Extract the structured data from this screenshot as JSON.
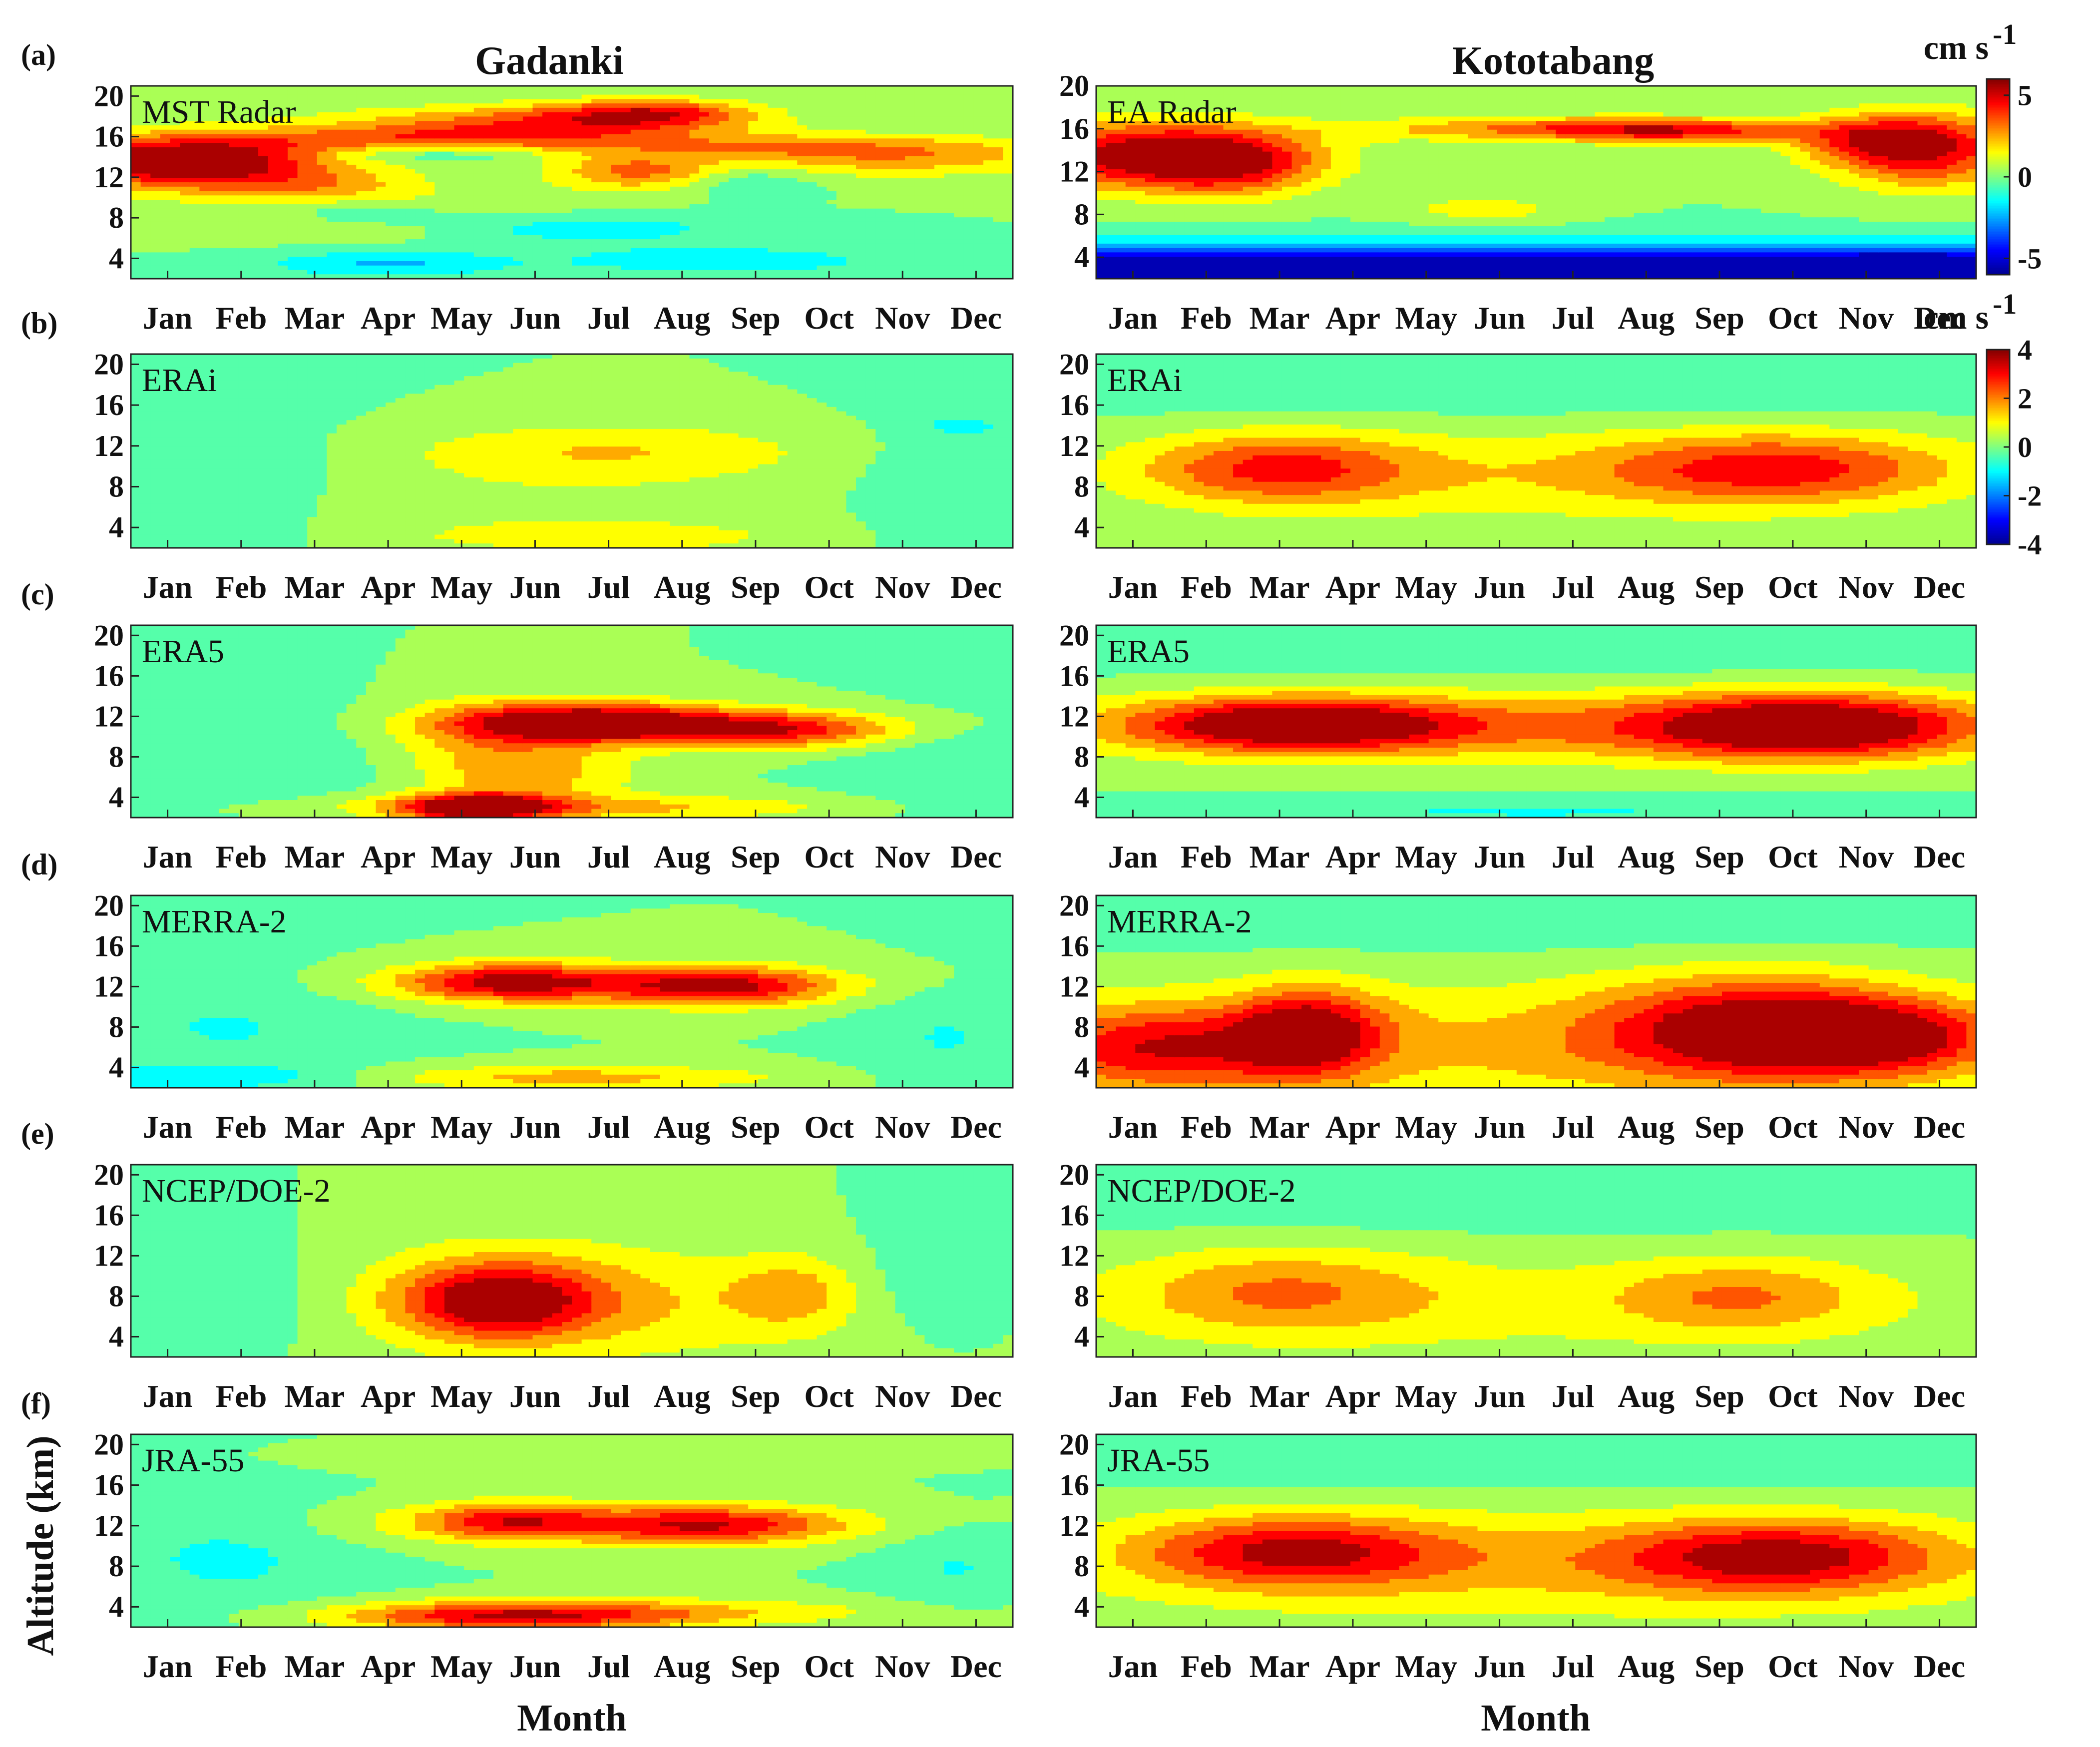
{
  "chart_data": {
    "type": "heatmap",
    "units": "cm s-1",
    "columns": [
      {
        "station": "Gadanki"
      },
      {
        "station": "Kototabang"
      }
    ],
    "months": [
      "Jan",
      "Feb",
      "Mar",
      "Apr",
      "May",
      "Jun",
      "Jul",
      "Aug",
      "Sep",
      "Oct",
      "Nov",
      "Dec"
    ],
    "xlabel": "Month",
    "ylabel": "Altitude (km)",
    "yticks": [
      4,
      8,
      12,
      16,
      20
    ],
    "ylim": [
      2,
      21
    ],
    "colorbars": [
      {
        "unit": "cm s",
        "unit_exp": "-1",
        "range": [
          -6,
          6
        ],
        "ticks": [
          "5",
          "0",
          "-5"
        ],
        "applies_to": "a"
      },
      {
        "unit": "cm s",
        "unit_exp": "-1",
        "range": [
          -4,
          4
        ],
        "ticks": [
          "4",
          "2",
          "0",
          "-2",
          "-4"
        ],
        "applies_to": "b-f"
      }
    ],
    "rows": [
      {
        "label": "(a)",
        "panels": [
          {
            "station": "Gadanki",
            "name": "MST Radar",
            "range": [
              -6,
              6
            ],
            "ylim": [
              2,
              21
            ],
            "features": [
              {
                "month": 1.6,
                "alt": 13.5,
                "amp": 4.5,
                "sm": 1.5,
                "sa": 2.0
              },
              {
                "month": 1.0,
                "alt": 13.5,
                "amp": 3.0,
                "sm": 1.0,
                "sa": 1.5
              },
              {
                "month": 5.8,
                "alt": 17.2,
                "amp": 3.5,
                "sm": 1.8,
                "sa": 1.3
              },
              {
                "month": 7.6,
                "alt": 18.3,
                "amp": 4.0,
                "sm": 1.0,
                "sa": 1.0
              },
              {
                "month": 7.4,
                "alt": 12.5,
                "amp": 3.2,
                "sm": 0.8,
                "sa": 1.2
              },
              {
                "month": 9.5,
                "alt": 15.0,
                "amp": 2.5,
                "sm": 2.5,
                "sa": 1.0
              },
              {
                "month": 4.5,
                "alt": 15.8,
                "amp": 2.0,
                "sm": 2.0,
                "sa": 0.8
              },
              {
                "month": 11.0,
                "alt": 13.5,
                "amp": 2.0,
                "sm": 1.5,
                "sa": 1.2
              },
              {
                "month": 3.0,
                "alt": 11.0,
                "amp": 1.5,
                "sm": 1.0,
                "sa": 1.0
              },
              {
                "month": 4.8,
                "alt": 8.0,
                "amp": 1.2,
                "sm": 2.0,
                "sa": 2.0
              },
              {
                "month": 4.0,
                "alt": 3.5,
                "amp": -2.2,
                "sm": 1.2,
                "sa": 1.0
              },
              {
                "month": 8.5,
                "alt": 3.8,
                "amp": -2.0,
                "sm": 1.5,
                "sa": 0.9
              },
              {
                "month": 6.5,
                "alt": 7.0,
                "amp": -2.2,
                "sm": 1.5,
                "sa": 1.2
              },
              {
                "month": 3.8,
                "alt": 8.5,
                "amp": -1.5,
                "sm": 0.8,
                "sa": 0.8
              },
              {
                "month": 4.5,
                "alt": 14.2,
                "amp": -1.5,
                "sm": 1.0,
                "sa": 0.6
              },
              {
                "month": 8.8,
                "alt": 11.5,
                "amp": -1.2,
                "sm": 0.6,
                "sa": 1.0
              }
            ]
          },
          {
            "station": "Kototabang",
            "name": "EA Radar",
            "range": [
              -6,
              6
            ],
            "ylim": [
              2,
              20
            ],
            "features": [
              {
                "month": 1.3,
                "alt": 13.5,
                "amp": 6.0,
                "sm": 1.4,
                "sa": 2.2
              },
              {
                "month": 2.4,
                "alt": 12.5,
                "amp": 2.5,
                "sm": 0.8,
                "sa": 2.0
              },
              {
                "month": 11.8,
                "alt": 14.0,
                "amp": 4.8,
                "sm": 0.9,
                "sa": 2.5
              },
              {
                "month": 11.0,
                "alt": 15.0,
                "amp": 2.5,
                "sm": 0.8,
                "sa": 1.5
              },
              {
                "month": 6.5,
                "alt": 16.0,
                "amp": 3.0,
                "sm": 1.8,
                "sa": 0.8
              },
              {
                "month": 8.5,
                "alt": 15.8,
                "amp": 3.5,
                "sm": 1.2,
                "sa": 0.8
              },
              {
                "month": 5.8,
                "alt": 8.5,
                "amp": 1.5,
                "sm": 0.8,
                "sa": 1.0
              },
              {
                "month": 6.5,
                "alt": 2.8,
                "amp": -6.0,
                "sm": 30.0,
                "sa": 0.9
              },
              {
                "month": 6.5,
                "alt": 4.5,
                "amp": -2.5,
                "sm": 30.0,
                "sa": 1.2
              },
              {
                "month": 11.5,
                "alt": 3.0,
                "amp": -2.5,
                "sm": 1.0,
                "sa": 1.0
              },
              {
                "month": 4.0,
                "alt": 3.2,
                "amp": -1.5,
                "sm": 1.2,
                "sa": 0.8
              }
            ]
          }
        ]
      },
      {
        "label": "(b)",
        "panels": [
          {
            "station": "Gadanki",
            "name": "ERAi",
            "range": [
              -4,
              4
            ],
            "ylim": [
              2,
              21
            ],
            "features": [
              {
                "month": 7.0,
                "alt": 11.5,
                "amp": 1.3,
                "sm": 2.0,
                "sa": 2.0
              },
              {
                "month": 7.0,
                "alt": 3.0,
                "amp": 0.9,
                "sm": 1.8,
                "sa": 1.0
              },
              {
                "month": 1.8,
                "alt": 8.0,
                "amp": -0.6,
                "sm": 1.2,
                "sa": 5.0
              },
              {
                "month": 11.8,
                "alt": 8.0,
                "amp": -0.6,
                "sm": 1.0,
                "sa": 5.0
              },
              {
                "month": 5.8,
                "alt": 6.0,
                "amp": 0.5,
                "sm": 3.0,
                "sa": 3.0
              },
              {
                "month": 11.8,
                "alt": 14.0,
                "amp": -0.7,
                "sm": 0.4,
                "sa": 0.6
              }
            ]
          },
          {
            "station": "Kototabang",
            "name": "ERAi",
            "range": [
              -4,
              4
            ],
            "ylim": [
              2,
              21
            ],
            "features": [
              {
                "month": 3.0,
                "alt": 9.8,
                "amp": 2.4,
                "sm": 1.3,
                "sa": 2.4
              },
              {
                "month": 9.8,
                "alt": 9.8,
                "amp": 2.5,
                "sm": 1.7,
                "sa": 2.4
              },
              {
                "month": 6.5,
                "alt": 9.0,
                "amp": 1.0,
                "sm": 4.0,
                "sa": 3.5
              },
              {
                "month": 6.5,
                "alt": 17.0,
                "amp": -0.4,
                "sm": 6.0,
                "sa": 2.0
              },
              {
                "month": 6.5,
                "alt": 2.5,
                "amp": 0.4,
                "sm": 6.0,
                "sa": 1.0
              }
            ]
          }
        ]
      },
      {
        "label": "(c)",
        "panels": [
          {
            "station": "Gadanki",
            "name": "ERA5",
            "range": [
              -4,
              4
            ],
            "ylim": [
              2,
              21
            ],
            "features": [
              {
                "month": 6.7,
                "alt": 11.5,
                "amp": 3.2,
                "sm": 1.2,
                "sa": 1.4
              },
              {
                "month": 8.0,
                "alt": 11.0,
                "amp": 2.2,
                "sm": 2.0,
                "sa": 1.3
              },
              {
                "month": 9.5,
                "alt": 10.5,
                "amp": 1.6,
                "sm": 1.0,
                "sa": 1.2
              },
              {
                "month": 5.2,
                "alt": 3.0,
                "amp": 3.8,
                "sm": 0.7,
                "sa": 1.0
              },
              {
                "month": 6.0,
                "alt": 6.5,
                "amp": 1.5,
                "sm": 1.0,
                "sa": 2.0
              },
              {
                "month": 6.5,
                "alt": 3.0,
                "amp": 1.6,
                "sm": 2.5,
                "sa": 0.9
              },
              {
                "month": 5.2,
                "alt": 10.0,
                "amp": 1.0,
                "sm": 0.8,
                "sa": 3.0
              },
              {
                "month": 1.8,
                "alt": 8.0,
                "amp": -0.6,
                "sm": 1.5,
                "sa": 4.0
              },
              {
                "month": 11.7,
                "alt": 7.0,
                "amp": -0.6,
                "sm": 1.0,
                "sa": 4.0
              }
            ]
          },
          {
            "station": "Kototabang",
            "name": "ERA5",
            "range": [
              -4,
              4
            ],
            "ylim": [
              2,
              21
            ],
            "features": [
              {
                "month": 3.2,
                "alt": 11.2,
                "amp": 3.5,
                "sm": 1.5,
                "sa": 1.8
              },
              {
                "month": 10.2,
                "alt": 11.0,
                "amp": 3.8,
                "sm": 1.5,
                "sa": 2.2
              },
              {
                "month": 6.5,
                "alt": 11.0,
                "amp": 1.9,
                "sm": 5.0,
                "sa": 2.5
              },
              {
                "month": 6.5,
                "alt": 2.5,
                "amp": -0.7,
                "sm": 6.0,
                "sa": 1.0
              },
              {
                "month": 6.5,
                "alt": 18.0,
                "amp": -0.4,
                "sm": 6.0,
                "sa": 2.0
              }
            ]
          }
        ]
      },
      {
        "label": "(d)",
        "panels": [
          {
            "station": "Gadanki",
            "name": "MERRA-2",
            "range": [
              -4,
              4
            ],
            "ylim": [
              2,
              21
            ],
            "features": [
              {
                "month": 5.6,
                "alt": 12.5,
                "amp": 2.6,
                "sm": 1.0,
                "sa": 1.3
              },
              {
                "month": 8.6,
                "alt": 12.0,
                "amp": 2.6,
                "sm": 1.0,
                "sa": 1.3
              },
              {
                "month": 7.0,
                "alt": 12.2,
                "amp": 1.6,
                "sm": 2.2,
                "sa": 1.5
              },
              {
                "month": 6.5,
                "alt": 3.0,
                "amp": 1.6,
                "sm": 2.0,
                "sa": 0.9
              },
              {
                "month": 1.8,
                "alt": 8.0,
                "amp": -0.7,
                "sm": 1.5,
                "sa": 4.0
              },
              {
                "month": 1.5,
                "alt": 3.0,
                "amp": -1.0,
                "sm": 1.5,
                "sa": 0.8
              },
              {
                "month": 11.6,
                "alt": 7.0,
                "amp": -0.7,
                "sm": 0.8,
                "sa": 3.5
              }
            ]
          },
          {
            "station": "Kototabang",
            "name": "MERRA-2",
            "range": [
              -4,
              4
            ],
            "ylim": [
              2,
              21
            ],
            "features": [
              {
                "month": 3.4,
                "alt": 7.5,
                "amp": 3.2,
                "sm": 0.7,
                "sa": 3.0
              },
              {
                "month": 9.5,
                "alt": 8.0,
                "amp": 3.2,
                "sm": 1.5,
                "sa": 3.5
              },
              {
                "month": 11.2,
                "alt": 7.0,
                "amp": 2.6,
                "sm": 1.2,
                "sa": 2.5
              },
              {
                "month": 1.3,
                "alt": 6.0,
                "amp": 2.6,
                "sm": 1.3,
                "sa": 3.0
              },
              {
                "month": 6.5,
                "alt": 6.0,
                "amp": 1.4,
                "sm": 5.0,
                "sa": 4.5
              },
              {
                "month": 6.5,
                "alt": 18.0,
                "amp": -0.4,
                "sm": 6.0,
                "sa": 2.0
              }
            ]
          }
        ]
      },
      {
        "label": "(e)",
        "panels": [
          {
            "station": "Gadanki",
            "name": "NCEP/DOE-2",
            "range": [
              -4,
              4
            ],
            "ylim": [
              2,
              21
            ],
            "features": [
              {
                "month": 5.5,
                "alt": 7.5,
                "amp": 3.0,
                "sm": 0.9,
                "sa": 2.5
              },
              {
                "month": 5.8,
                "alt": 8.5,
                "amp": 1.2,
                "sm": 2.0,
                "sa": 4.0
              },
              {
                "month": 9.5,
                "alt": 8.5,
                "amp": 1.3,
                "sm": 0.6,
                "sa": 2.5
              },
              {
                "month": 7.5,
                "alt": 6.0,
                "amp": 0.6,
                "sm": 3.0,
                "sa": 4.0
              },
              {
                "month": 1.8,
                "alt": 8.0,
                "amp": -0.7,
                "sm": 1.5,
                "sa": 4.0
              },
              {
                "month": 11.5,
                "alt": 9.0,
                "amp": -0.6,
                "sm": 0.8,
                "sa": 4.0
              }
            ]
          },
          {
            "station": "Kototabang",
            "name": "NCEP/DOE-2",
            "range": [
              -4,
              4
            ],
            "ylim": [
              2,
              21
            ],
            "features": [
              {
                "month": 3.0,
                "alt": 8.5,
                "amp": 1.6,
                "sm": 1.5,
                "sa": 3.0
              },
              {
                "month": 9.3,
                "alt": 8.0,
                "amp": 1.5,
                "sm": 1.2,
                "sa": 2.5
              },
              {
                "month": 6.5,
                "alt": 7.0,
                "amp": 0.8,
                "sm": 5.0,
                "sa": 4.0
              },
              {
                "month": 6.5,
                "alt": 17.5,
                "amp": -0.6,
                "sm": 6.0,
                "sa": 2.2
              }
            ]
          }
        ]
      },
      {
        "label": "(f)",
        "panels": [
          {
            "station": "Gadanki",
            "name": "JRA-55",
            "range": [
              -4,
              4
            ],
            "ylim": [
              2,
              21
            ],
            "features": [
              {
                "month": 5.6,
                "alt": 12.5,
                "amp": 2.0,
                "sm": 0.8,
                "sa": 1.3
              },
              {
                "month": 8.4,
                "alt": 12.0,
                "amp": 2.2,
                "sm": 1.2,
                "sa": 1.3
              },
              {
                "month": 7.0,
                "alt": 12.2,
                "amp": 1.5,
                "sm": 2.5,
                "sa": 1.5
              },
              {
                "month": 5.6,
                "alt": 3.0,
                "amp": 2.7,
                "sm": 1.6,
                "sa": 1.0
              },
              {
                "month": 7.5,
                "alt": 3.5,
                "amp": 1.3,
                "sm": 2.5,
                "sa": 1.0
              },
              {
                "month": 1.8,
                "alt": 9.0,
                "amp": -0.8,
                "sm": 1.2,
                "sa": 4.0
              },
              {
                "month": 11.7,
                "alt": 8.0,
                "amp": -0.7,
                "sm": 0.7,
                "sa": 3.0
              },
              {
                "month": 6.5,
                "alt": 18.5,
                "amp": 0.4,
                "sm": 2.0,
                "sa": 1.0
              }
            ]
          },
          {
            "station": "Kototabang",
            "name": "JRA-55",
            "range": [
              -4,
              4
            ],
            "ylim": [
              2,
              21
            ],
            "features": [
              {
                "month": 3.2,
                "alt": 9.5,
                "amp": 2.8,
                "sm": 1.5,
                "sa": 2.4
              },
              {
                "month": 9.8,
                "alt": 9.0,
                "amp": 3.0,
                "sm": 1.6,
                "sa": 2.5
              },
              {
                "month": 6.5,
                "alt": 8.0,
                "amp": 1.3,
                "sm": 5.0,
                "sa": 4.0
              },
              {
                "month": 6.5,
                "alt": 18.0,
                "amp": -0.4,
                "sm": 6.0,
                "sa": 2.0
              }
            ]
          }
        ]
      }
    ]
  }
}
